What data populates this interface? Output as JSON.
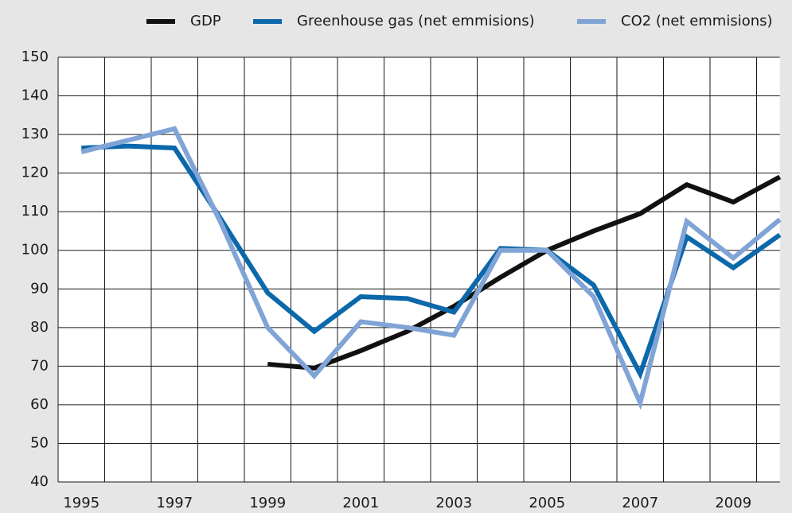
{
  "chart_data": {
    "type": "line",
    "categories": [
      "1995",
      null,
      "1997",
      null,
      "1999",
      null,
      "2001",
      null,
      "2003",
      null,
      "2005",
      null,
      "2007",
      null,
      "2009",
      null
    ],
    "series": [
      {
        "name": "GDP",
        "color": "#111111",
        "values": [
          null,
          null,
          null,
          null,
          70.5,
          69.5,
          74,
          79,
          85.5,
          93,
          100,
          105,
          109.5,
          117,
          112.5,
          119
        ]
      },
      {
        "name": "Greenhouse gas (net emmisions)",
        "color": "#0b68aa",
        "values": [
          126.5,
          127,
          126.5,
          108,
          89,
          79,
          88,
          87.5,
          84,
          100.5,
          100,
          91,
          68,
          103.5,
          95.5,
          104
        ]
      },
      {
        "name": "CO2 (net emmisions)",
        "color": "#80a4d6",
        "values": [
          125.5,
          128.5,
          131.5,
          107,
          80,
          67.5,
          81.5,
          80,
          78,
          100,
          100,
          88,
          60.5,
          107.5,
          98,
          108
        ]
      }
    ],
    "ylim": [
      40,
      150
    ],
    "yticks": [
      40,
      50,
      60,
      70,
      80,
      90,
      100,
      110,
      120,
      130,
      140,
      150
    ],
    "grid": true,
    "legend": "top-right"
  }
}
